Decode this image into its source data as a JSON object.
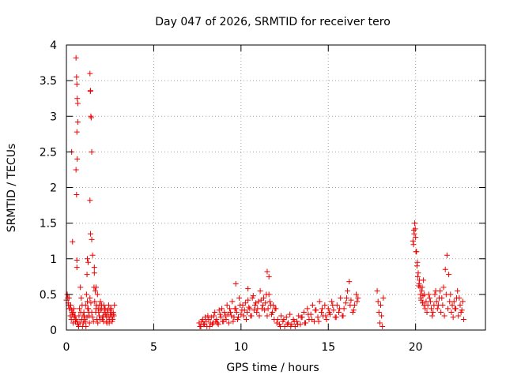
{
  "chart_data": {
    "type": "scatter",
    "title": "Day 047 of 2026, SRMTID for receiver tero",
    "xlabel": "GPS time / hours",
    "ylabel": "SRMTID / TECUs",
    "xlim": [
      0,
      24
    ],
    "ylim": [
      0,
      4
    ],
    "xticks": [
      0,
      5,
      10,
      15,
      20
    ],
    "xtick_labels": [
      "0",
      "5",
      "10",
      "15",
      "20"
    ],
    "yticks": [
      0,
      0.5,
      1,
      1.5,
      2,
      2.5,
      3,
      3.5,
      4
    ],
    "ytick_labels": [
      "0",
      "0.5",
      "1",
      "1.5",
      "2",
      "2.5",
      "3",
      "3.5",
      "4"
    ],
    "grid": true,
    "marker": "+",
    "color": "#ee0000",
    "series": [
      {
        "name": "SRMTID",
        "x": [
          0.0,
          0.05,
          0.1,
          0.15,
          0.2,
          0.25,
          0.3,
          0.35,
          0.4,
          0.45,
          0.5,
          0.55,
          0.6,
          0.65,
          0.7,
          0.75,
          0.8,
          0.85,
          0.9,
          0.95,
          1.0,
          1.05,
          1.1,
          1.15,
          1.2,
          1.25,
          1.3,
          1.35,
          1.4,
          1.45,
          1.5,
          1.55,
          1.6,
          1.65,
          1.7,
          1.75,
          1.8,
          1.85,
          1.9,
          1.95,
          2.0,
          2.05,
          2.1,
          2.15,
          2.2,
          2.25,
          2.3,
          2.35,
          2.4,
          2.45,
          2.5,
          2.55,
          2.6,
          2.65,
          2.7,
          2.75,
          0.3,
          0.35,
          0.55,
          0.58,
          0.6,
          0.62,
          0.65,
          0.65,
          0.6,
          0.62,
          0.55,
          0.58,
          0.6,
          0.6,
          1.35,
          1.37,
          1.38,
          1.4,
          1.42,
          1.45,
          1.35,
          1.38,
          1.45,
          1.5,
          1.6,
          1.2,
          1.25,
          1.18,
          1.7,
          7.6,
          7.7,
          7.8,
          7.9,
          8.0,
          8.1,
          8.2,
          8.3,
          8.4,
          8.5,
          8.6,
          8.7,
          8.8,
          8.9,
          9.0,
          9.1,
          9.2,
          9.3,
          9.4,
          9.5,
          9.6,
          9.7,
          9.8,
          9.9,
          10.0,
          10.1,
          10.2,
          10.3,
          10.4,
          10.5,
          10.6,
          10.7,
          10.8,
          10.9,
          11.0,
          11.1,
          11.2,
          11.3,
          11.4,
          11.5,
          11.6,
          11.7,
          11.8,
          11.9,
          12.0,
          9.7,
          10.4,
          11.5,
          11.6,
          12.1,
          12.2,
          12.3,
          12.4,
          12.5,
          12.6,
          12.7,
          12.8,
          12.9,
          13.0,
          13.1,
          13.2,
          13.3,
          13.4,
          13.5,
          13.6,
          13.7,
          13.8,
          13.9,
          14.0,
          14.1,
          14.2,
          14.3,
          14.4,
          14.5,
          14.6,
          14.7,
          14.8,
          14.9,
          15.0,
          15.1,
          15.2,
          15.3,
          15.4,
          15.5,
          15.6,
          15.7,
          15.8,
          15.9,
          16.0,
          16.1,
          16.2,
          16.3,
          16.4,
          16.5,
          16.6,
          16.7,
          17.8,
          17.85,
          17.9,
          17.95,
          18.0,
          18.05,
          18.1,
          18.15,
          19.85,
          19.9,
          19.95,
          20.0,
          20.05,
          20.1,
          20.15,
          20.2,
          20.25,
          20.3,
          20.35,
          20.4,
          20.45,
          20.5,
          20.6,
          20.7,
          20.8,
          20.9,
          21.0,
          21.1,
          21.2,
          21.3,
          21.4,
          21.5,
          21.6,
          21.7,
          21.8,
          21.9,
          22.0,
          22.1,
          22.2,
          22.3,
          22.4,
          22.5,
          22.6,
          22.7,
          22.75,
          0.08,
          0.12,
          0.18,
          0.22,
          0.28,
          0.32,
          0.38,
          0.42,
          0.48,
          0.52,
          0.72,
          0.78,
          0.82,
          0.88,
          0.92,
          0.98,
          1.02,
          1.08,
          1.12,
          1.18,
          1.22,
          1.28,
          1.32,
          1.58,
          1.62,
          1.68,
          1.72,
          1.78,
          1.82,
          1.88,
          1.92,
          1.98,
          2.02,
          2.08,
          2.12,
          2.18,
          2.22,
          2.28,
          2.32,
          2.38,
          2.42,
          2.48,
          2.52,
          2.58,
          2.62,
          2.68,
          2.72,
          7.65,
          7.75,
          7.85,
          7.95,
          8.05,
          8.15,
          8.25,
          8.35,
          8.45,
          8.55,
          8.65,
          8.75,
          8.85,
          8.95,
          9.05,
          9.15,
          9.25,
          9.35,
          9.45,
          9.55,
          9.65,
          9.75,
          9.85,
          9.95,
          10.05,
          10.15,
          10.25,
          10.35,
          10.45,
          10.55,
          10.65,
          10.75,
          10.85,
          10.95,
          11.05,
          11.15,
          11.25,
          11.35,
          11.45,
          11.55,
          11.65,
          11.75,
          11.85,
          11.95,
          12.05,
          12.25,
          12.45,
          12.65,
          12.85,
          13.05,
          13.25,
          13.45,
          13.65,
          13.85,
          14.05,
          14.25,
          14.45,
          14.65,
          14.85,
          15.05,
          15.25,
          15.45,
          15.65,
          15.85,
          16.05,
          16.25,
          16.45,
          16.65,
          19.88,
          19.92,
          19.98,
          20.02,
          20.08,
          20.12,
          20.18,
          20.22,
          20.28,
          20.32,
          20.38,
          20.42,
          20.48,
          20.55,
          20.65,
          20.75,
          20.85,
          20.95,
          21.05,
          21.15,
          21.25,
          21.35,
          21.45,
          21.55,
          21.65,
          21.75,
          21.85,
          21.95,
          22.05,
          22.15,
          22.25,
          22.35,
          22.45,
          22.55,
          22.65
        ],
        "y": [
          0.42,
          0.5,
          0.38,
          0.45,
          0.3,
          0.35,
          0.28,
          0.22,
          0.25,
          0.18,
          0.2,
          0.15,
          0.12,
          0.08,
          0.05,
          0.3,
          0.6,
          0.45,
          0.35,
          0.2,
          0.25,
          0.15,
          0.35,
          0.5,
          0.4,
          0.3,
          0.2,
          0.45,
          0.38,
          0.25,
          0.18,
          0.12,
          0.8,
          0.55,
          0.3,
          0.15,
          0.1,
          0.25,
          0.35,
          0.4,
          0.3,
          0.15,
          0.2,
          0.35,
          0.3,
          0.22,
          0.12,
          0.28,
          0.18,
          0.1,
          0.3,
          0.25,
          0.2,
          0.15,
          0.22,
          0.35,
          2.5,
          1.24,
          3.82,
          3.55,
          3.45,
          3.25,
          3.18,
          2.92,
          2.78,
          2.4,
          2.25,
          1.9,
          0.98,
          0.88,
          3.6,
          3.35,
          3.36,
          3.0,
          2.98,
          2.5,
          1.82,
          1.35,
          1.27,
          1.05,
          0.88,
          1.0,
          0.95,
          0.78,
          0.6,
          0.1,
          0.05,
          0.15,
          0.08,
          0.12,
          0.2,
          0.05,
          0.18,
          0.1,
          0.25,
          0.15,
          0.08,
          0.22,
          0.3,
          0.12,
          0.2,
          0.35,
          0.1,
          0.25,
          0.4,
          0.18,
          0.3,
          0.15,
          0.45,
          0.22,
          0.35,
          0.28,
          0.15,
          0.42,
          0.3,
          0.2,
          0.48,
          0.35,
          0.25,
          0.4,
          0.55,
          0.3,
          0.45,
          0.38,
          0.2,
          0.5,
          0.35,
          0.25,
          0.15,
          0.3,
          0.65,
          0.58,
          0.82,
          0.75,
          0.15,
          0.08,
          0.2,
          0.12,
          0.05,
          0.18,
          0.1,
          0.22,
          0.08,
          0.15,
          0.05,
          0.12,
          0.2,
          0.08,
          0.18,
          0.25,
          0.1,
          0.3,
          0.15,
          0.22,
          0.35,
          0.12,
          0.28,
          0.18,
          0.4,
          0.25,
          0.2,
          0.35,
          0.15,
          0.3,
          0.22,
          0.4,
          0.28,
          0.18,
          0.35,
          0.25,
          0.45,
          0.2,
          0.3,
          0.38,
          0.55,
          0.68,
          0.42,
          0.25,
          0.35,
          0.5,
          0.45,
          0.55,
          0.4,
          0.25,
          0.1,
          0.35,
          0.2,
          0.05,
          0.45,
          1.25,
          1.4,
          1.5,
          1.3,
          1.1,
          0.95,
          0.8,
          0.65,
          0.6,
          0.45,
          0.55,
          0.38,
          0.7,
          0.5,
          0.4,
          0.35,
          0.45,
          0.3,
          0.25,
          0.5,
          0.4,
          0.35,
          0.55,
          0.45,
          0.6,
          0.85,
          1.05,
          0.78,
          0.5,
          0.35,
          0.4,
          0.3,
          0.55,
          0.45,
          0.25,
          0.4,
          0.15,
          0.45,
          0.35,
          0.3,
          0.2,
          0.15,
          0.25,
          0.1,
          0.3,
          0.2,
          0.12,
          0.2,
          0.1,
          0.25,
          0.15,
          0.05,
          0.1,
          0.2,
          0.12,
          0.05,
          0.18,
          0.3,
          0.25,
          0.1,
          0.6,
          0.4,
          0.25,
          0.35,
          0.5,
          0.3,
          0.2,
          0.15,
          0.28,
          0.35,
          0.18,
          0.12,
          0.25,
          0.3,
          0.2,
          0.1,
          0.25,
          0.35,
          0.15,
          0.22,
          0.3,
          0.12,
          0.25,
          0.2,
          0.05,
          0.12,
          0.08,
          0.18,
          0.05,
          0.15,
          0.1,
          0.08,
          0.2,
          0.12,
          0.1,
          0.28,
          0.18,
          0.12,
          0.25,
          0.15,
          0.22,
          0.3,
          0.2,
          0.12,
          0.3,
          0.25,
          0.18,
          0.35,
          0.28,
          0.2,
          0.38,
          0.25,
          0.32,
          0.2,
          0.45,
          0.28,
          0.38,
          0.3,
          0.2,
          0.42,
          0.35,
          0.28,
          0.5,
          0.3,
          0.4,
          0.22,
          0.35,
          0.3,
          0.1,
          0.05,
          0.15,
          0.08,
          0.05,
          0.12,
          0.08,
          0.18,
          0.1,
          0.22,
          0.15,
          0.28,
          0.12,
          0.3,
          0.2,
          0.25,
          0.35,
          0.18,
          0.3,
          0.2,
          0.45,
          0.35,
          0.28,
          0.4,
          1.2,
          1.35,
          1.42,
          1.1,
          0.9,
          0.75,
          0.62,
          0.7,
          0.5,
          0.42,
          0.6,
          0.48,
          0.35,
          0.3,
          0.25,
          0.5,
          0.4,
          0.2,
          0.35,
          0.55,
          0.3,
          0.45,
          0.25,
          0.35,
          0.2,
          0.5,
          0.3,
          0.4,
          0.25,
          0.18,
          0.3,
          0.45,
          0.2,
          0.35,
          0.28
        ]
      }
    ]
  }
}
